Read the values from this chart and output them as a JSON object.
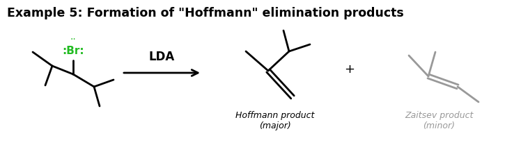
{
  "title": "Example 5: Formation of \"Hoffmann\" elimination products",
  "title_fontsize": 12.5,
  "title_fontweight": "bold",
  "background_color": "#ffffff",
  "black": "#000000",
  "gray": "#999999",
  "green": "#22bb22",
  "lda_label": "LDA",
  "hoffmann_label": "Hoffmann product\n(major)",
  "zaitsev_label": "Zaitsev product\n(minor)",
  "plus_label": "+"
}
